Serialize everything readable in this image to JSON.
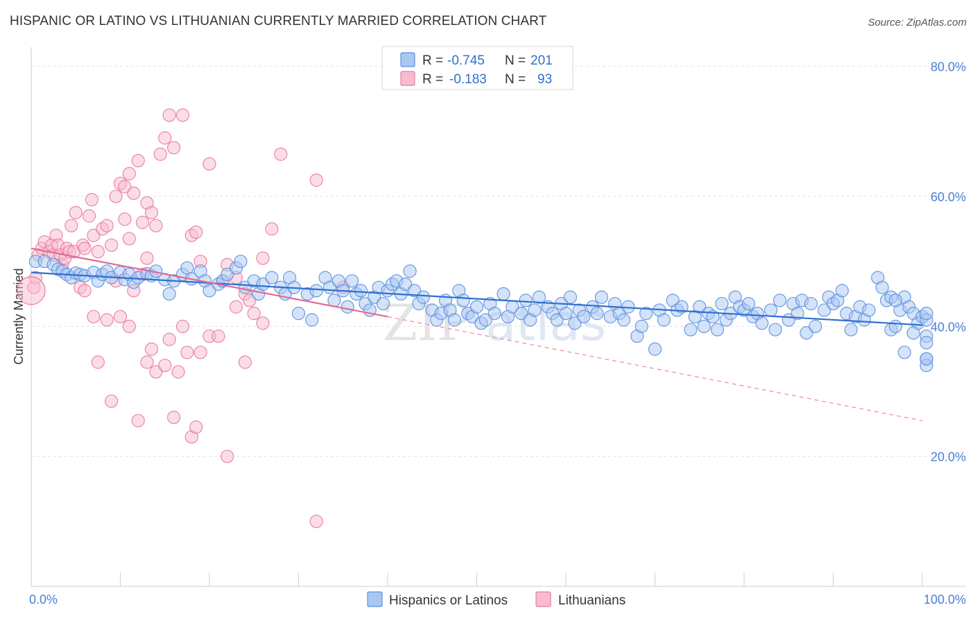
{
  "title": "HISPANIC OR LATINO VS LITHUANIAN CURRENTLY MARRIED CORRELATION CHART",
  "source": "Source: ZipAtlas.com",
  "watermark": [
    "ZIP",
    "atlas"
  ],
  "legend": {
    "rows": [
      {
        "r_label": "R =",
        "r_value": "-0.745",
        "n_label": "N =",
        "n_value": "201",
        "color": "#8ab4f0"
      },
      {
        "r_label": "R =",
        "r_value": "-0.183",
        "n_label": "N =",
        "n_value": "93",
        "color": "#f4a8c0"
      }
    ]
  },
  "bottom_legend": [
    {
      "label": "Hispanics or Latinos",
      "color": "#8ab4f0"
    },
    {
      "label": "Lithuanians",
      "color": "#f4a8c0"
    }
  ],
  "chart_data": {
    "type": "scatter",
    "xlabel": "",
    "ylabel": "Currently Married",
    "xlim": [
      0,
      100
    ],
    "ylim": [
      0,
      82
    ],
    "x_tick_labels": [
      {
        "value": 0,
        "label": "0.0%"
      },
      {
        "value": 100,
        "label": "100.0%"
      }
    ],
    "y_tick_labels": [
      {
        "value": 20,
        "label": "20.0%"
      },
      {
        "value": 40,
        "label": "40.0%"
      },
      {
        "value": 60,
        "label": "60.0%"
      },
      {
        "value": 80,
        "label": "80.0%"
      }
    ],
    "grid": true,
    "series": [
      {
        "name": "Hispanics or Latinos",
        "color": "#5b8fe0",
        "fill": "#a9c7f2",
        "trend": {
          "x0": 0,
          "y0": 48.3,
          "x1": 100,
          "y1": 40.2
        },
        "points": [
          [
            0.5,
            50.0
          ],
          [
            1.5,
            50.0
          ],
          [
            2.5,
            49.5
          ],
          [
            3,
            48.8
          ],
          [
            3.5,
            48.5
          ],
          [
            4,
            48.0
          ],
          [
            4.5,
            47.5
          ],
          [
            5,
            48.2
          ],
          [
            5.5,
            48.0
          ],
          [
            6,
            47.8
          ],
          [
            7,
            48.3
          ],
          [
            7.5,
            47.0
          ],
          [
            8,
            48.0
          ],
          [
            8.5,
            48.5
          ],
          [
            9,
            47.5
          ],
          [
            10,
            48.3
          ],
          [
            10.5,
            47.2
          ],
          [
            11,
            48.0
          ],
          [
            11.5,
            46.8
          ],
          [
            12,
            47.5
          ],
          [
            13,
            48.1
          ],
          [
            13.5,
            47.8
          ],
          [
            14,
            48.5
          ],
          [
            15,
            47.2
          ],
          [
            15.5,
            45.0
          ],
          [
            16,
            47.0
          ],
          [
            17,
            48.0
          ],
          [
            17.5,
            49.0
          ],
          [
            18,
            47.3
          ],
          [
            19,
            48.5
          ],
          [
            19.5,
            47.0
          ],
          [
            20,
            45.5
          ],
          [
            21,
            46.5
          ],
          [
            21.5,
            47.0
          ],
          [
            22,
            48.0
          ],
          [
            23,
            49.0
          ],
          [
            23.5,
            50.0
          ],
          [
            24,
            46.0
          ],
          [
            25,
            47.0
          ],
          [
            25.5,
            45.0
          ],
          [
            26,
            46.5
          ],
          [
            27,
            47.5
          ],
          [
            28,
            46.0
          ],
          [
            28.5,
            45.0
          ],
          [
            29,
            47.5
          ],
          [
            29.5,
            46.0
          ],
          [
            30,
            42.0
          ],
          [
            31,
            45.0
          ],
          [
            31.5,
            41.0
          ],
          [
            32,
            45.5
          ],
          [
            33,
            47.5
          ],
          [
            33.5,
            46.0
          ],
          [
            34,
            44.0
          ],
          [
            34.5,
            47.0
          ],
          [
            35,
            45.5
          ],
          [
            35.5,
            43.0
          ],
          [
            36,
            47.0
          ],
          [
            36.5,
            45.0
          ],
          [
            37,
            45.5
          ],
          [
            37.5,
            43.5
          ],
          [
            38,
            42.5
          ],
          [
            38.5,
            44.5
          ],
          [
            39,
            46.0
          ],
          [
            39.5,
            43.5
          ],
          [
            40,
            45.5
          ],
          [
            40.5,
            46.5
          ],
          [
            41,
            47.0
          ],
          [
            41.5,
            45.0
          ],
          [
            42,
            46.5
          ],
          [
            42.5,
            48.5
          ],
          [
            43,
            45.5
          ],
          [
            43.5,
            43.5
          ],
          [
            44,
            44.5
          ],
          [
            45,
            42.5
          ],
          [
            45.5,
            41.0
          ],
          [
            46,
            42.0
          ],
          [
            46.5,
            44.0
          ],
          [
            47,
            42.5
          ],
          [
            47.5,
            41.0
          ],
          [
            48,
            45.5
          ],
          [
            48.5,
            44.0
          ],
          [
            49,
            42.0
          ],
          [
            49.5,
            41.5
          ],
          [
            50,
            43.0
          ],
          [
            50.5,
            40.5
          ],
          [
            51,
            41.0
          ],
          [
            51.5,
            43.5
          ],
          [
            52,
            42.0
          ],
          [
            53,
            45.0
          ],
          [
            53.5,
            41.5
          ],
          [
            54,
            43.0
          ],
          [
            55,
            42.0
          ],
          [
            55.5,
            44.0
          ],
          [
            56,
            41.0
          ],
          [
            56.5,
            42.5
          ],
          [
            57,
            44.5
          ],
          [
            58,
            43.0
          ],
          [
            58.5,
            42.0
          ],
          [
            59,
            41.0
          ],
          [
            59.5,
            43.5
          ],
          [
            60,
            42.0
          ],
          [
            60.5,
            44.5
          ],
          [
            61,
            40.5
          ],
          [
            61.5,
            42.5
          ],
          [
            62,
            41.5
          ],
          [
            63,
            43.0
          ],
          [
            63.5,
            42.0
          ],
          [
            64,
            44.5
          ],
          [
            65,
            41.5
          ],
          [
            65.5,
            43.5
          ],
          [
            66,
            42.0
          ],
          [
            66.5,
            41.0
          ],
          [
            67,
            43.0
          ],
          [
            68,
            38.5
          ],
          [
            68.5,
            40.0
          ],
          [
            69,
            42.0
          ],
          [
            70,
            36.5
          ],
          [
            70.5,
            42.5
          ],
          [
            71,
            41.0
          ],
          [
            72,
            44.0
          ],
          [
            72.5,
            42.5
          ],
          [
            73,
            43.0
          ],
          [
            74,
            39.5
          ],
          [
            74.5,
            41.5
          ],
          [
            75,
            43.0
          ],
          [
            75.5,
            40.0
          ],
          [
            76,
            42.0
          ],
          [
            76.5,
            41.5
          ],
          [
            77,
            39.5
          ],
          [
            77.5,
            43.5
          ],
          [
            78,
            41.0
          ],
          [
            78.5,
            42.0
          ],
          [
            79,
            44.5
          ],
          [
            79.5,
            43.0
          ],
          [
            80,
            42.5
          ],
          [
            80.5,
            43.5
          ],
          [
            81,
            41.5
          ],
          [
            81.5,
            42.0
          ],
          [
            82,
            40.5
          ],
          [
            83,
            42.5
          ],
          [
            83.5,
            39.5
          ],
          [
            84,
            44.0
          ],
          [
            85,
            41.0
          ],
          [
            85.5,
            43.5
          ],
          [
            86,
            42.0
          ],
          [
            86.5,
            44.0
          ],
          [
            87,
            39.0
          ],
          [
            87.5,
            43.5
          ],
          [
            88,
            40.0
          ],
          [
            89,
            42.5
          ],
          [
            89.5,
            44.5
          ],
          [
            90,
            43.5
          ],
          [
            90.5,
            44.0
          ],
          [
            91,
            45.5
          ],
          [
            91.5,
            42.0
          ],
          [
            92,
            39.5
          ],
          [
            92.5,
            41.5
          ],
          [
            93,
            43.0
          ],
          [
            93.5,
            41.0
          ],
          [
            94,
            42.5
          ],
          [
            95,
            47.5
          ],
          [
            95.5,
            46.0
          ],
          [
            96,
            44.0
          ],
          [
            96.5,
            39.5
          ],
          [
            97,
            40.0
          ],
          [
            97.5,
            42.5
          ],
          [
            98,
            44.5
          ],
          [
            98.5,
            43.0
          ],
          [
            99,
            42.0
          ],
          [
            99.5,
            40.5
          ],
          [
            100,
            41.5
          ],
          [
            100.5,
            38.5
          ],
          [
            101,
            37.5
          ],
          [
            101.5,
            35.0
          ],
          [
            102,
            34.0
          ],
          [
            102.5,
            35.0
          ],
          [
            103,
            41.0
          ],
          [
            103.5,
            42.0
          ],
          [
            96.5,
            44.5
          ],
          [
            97,
            44.0
          ],
          [
            99,
            39.0
          ],
          [
            98,
            36.0
          ]
        ]
      },
      {
        "name": "Lithuanians",
        "color": "#e87aa0",
        "fill": "#f7bcd0",
        "trend": {
          "x0": 0,
          "y0": 52.0,
          "x1": 40,
          "y1": 41.5
        },
        "trend_dashed": {
          "x0": 40,
          "y0": 41.5,
          "x1": 100,
          "y1": 25.5
        },
        "points": [
          [
            0.3,
            46.0
          ],
          [
            0.5,
            47.5
          ],
          [
            0.8,
            51.0
          ],
          [
            1.2,
            52.0
          ],
          [
            1.5,
            53.0
          ],
          [
            2,
            51.5
          ],
          [
            2.3,
            52.5
          ],
          [
            2.5,
            51.0
          ],
          [
            2.8,
            54.0
          ],
          [
            3,
            52.5
          ],
          [
            3.3,
            51.0
          ],
          [
            3.5,
            49.5
          ],
          [
            3.8,
            50.5
          ],
          [
            4,
            52.0
          ],
          [
            4.3,
            51.5
          ],
          [
            4.5,
            55.5
          ],
          [
            4.8,
            51.5
          ],
          [
            5,
            57.5
          ],
          [
            5.5,
            46.0
          ],
          [
            5.8,
            52.5
          ],
          [
            6,
            52.0
          ],
          [
            6.5,
            57.0
          ],
          [
            6.8,
            59.5
          ],
          [
            7,
            54.0
          ],
          [
            7.5,
            51.5
          ],
          [
            8,
            55.0
          ],
          [
            8.5,
            55.5
          ],
          [
            9,
            52.5
          ],
          [
            9.5,
            60.0
          ],
          [
            10,
            62.0
          ],
          [
            10.5,
            61.5
          ],
          [
            11,
            63.5
          ],
          [
            11.5,
            60.5
          ],
          [
            12,
            65.5
          ],
          [
            12.5,
            56.0
          ],
          [
            13,
            59.0
          ],
          [
            13.5,
            57.5
          ],
          [
            14,
            55.5
          ],
          [
            14.5,
            66.5
          ],
          [
            15,
            69.0
          ],
          [
            15.5,
            72.5
          ],
          [
            16,
            67.5
          ],
          [
            17,
            72.5
          ],
          [
            18,
            54.0
          ],
          [
            18.5,
            54.5
          ],
          [
            19,
            50.0
          ],
          [
            20,
            65.0
          ],
          [
            22,
            49.5
          ],
          [
            23,
            47.5
          ],
          [
            24,
            45.0
          ],
          [
            24.5,
            44.0
          ],
          [
            25,
            42.0
          ],
          [
            26,
            50.5
          ],
          [
            27,
            55.0
          ],
          [
            28,
            66.5
          ],
          [
            32,
            62.5
          ],
          [
            35,
            46.0
          ],
          [
            6,
            45.5
          ],
          [
            7,
            41.5
          ],
          [
            7.5,
            34.5
          ],
          [
            9,
            28.5
          ],
          [
            10,
            41.5
          ],
          [
            11,
            40.0
          ],
          [
            12,
            25.5
          ],
          [
            13,
            34.5
          ],
          [
            14,
            33.0
          ],
          [
            15,
            34.0
          ],
          [
            16,
            26.0
          ],
          [
            17,
            40.0
          ],
          [
            17.5,
            36.0
          ],
          [
            18,
            23.0
          ],
          [
            18.5,
            24.5
          ],
          [
            19,
            36.0
          ],
          [
            20,
            38.5
          ],
          [
            21,
            38.5
          ],
          [
            22,
            20.0
          ],
          [
            23,
            43.0
          ],
          [
            24,
            34.5
          ],
          [
            26,
            40.5
          ],
          [
            32,
            10.0
          ],
          [
            13.5,
            36.5
          ],
          [
            11.5,
            45.5
          ],
          [
            8.5,
            41.0
          ],
          [
            9.5,
            47.0
          ],
          [
            15.5,
            38.0
          ],
          [
            16.5,
            33.0
          ],
          [
            12.5,
            48.0
          ],
          [
            21.5,
            47.0
          ],
          [
            10.5,
            56.5
          ],
          [
            11,
            53.5
          ],
          [
            13,
            50.5
          ]
        ]
      }
    ]
  }
}
